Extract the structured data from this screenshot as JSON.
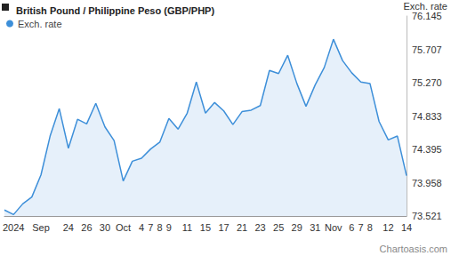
{
  "chart_data": {
    "type": "line",
    "title": "British Pound / Philippine Peso (GBP/PHP)",
    "y_label": "Exch. rate",
    "annotation": "Chartoasis.com",
    "legend": "top-left",
    "grid": false,
    "marker": "none",
    "categories": [
      null,
      "2024",
      null,
      null,
      "Sep",
      null,
      null,
      "24",
      null,
      "26",
      null,
      "30",
      null,
      "Oct",
      null,
      "4",
      "7",
      "8",
      "9",
      null,
      "11",
      null,
      "15",
      null,
      "17",
      null,
      "21",
      null,
      "23",
      null,
      "25",
      null,
      "29",
      null,
      "31",
      null,
      "Nov",
      null,
      "6",
      "7",
      "8",
      null,
      "12",
      null,
      "14"
    ],
    "series": [
      {
        "name": "Exch. rate",
        "color": "#3d8fd9",
        "values": [
          73.6,
          73.54,
          73.68,
          73.77,
          74.06,
          74.57,
          74.93,
          74.41,
          74.79,
          74.73,
          75.0,
          74.69,
          74.51,
          73.98,
          74.24,
          74.28,
          74.4,
          74.49,
          74.8,
          74.66,
          74.87,
          75.28,
          74.87,
          75.01,
          74.9,
          74.72,
          74.89,
          74.91,
          74.97,
          75.43,
          75.39,
          75.63,
          75.26,
          74.96,
          75.24,
          75.47,
          75.84,
          75.56,
          75.4,
          75.28,
          75.26,
          74.76,
          74.52,
          74.57,
          74.05
        ]
      }
    ],
    "ylim": [
      73.521,
      76.145
    ],
    "yticks": [
      73.521,
      73.958,
      74.395,
      74.833,
      {
        "value": 75.27,
        "label": "75.270"
      },
      75.707,
      76.145
    ]
  }
}
